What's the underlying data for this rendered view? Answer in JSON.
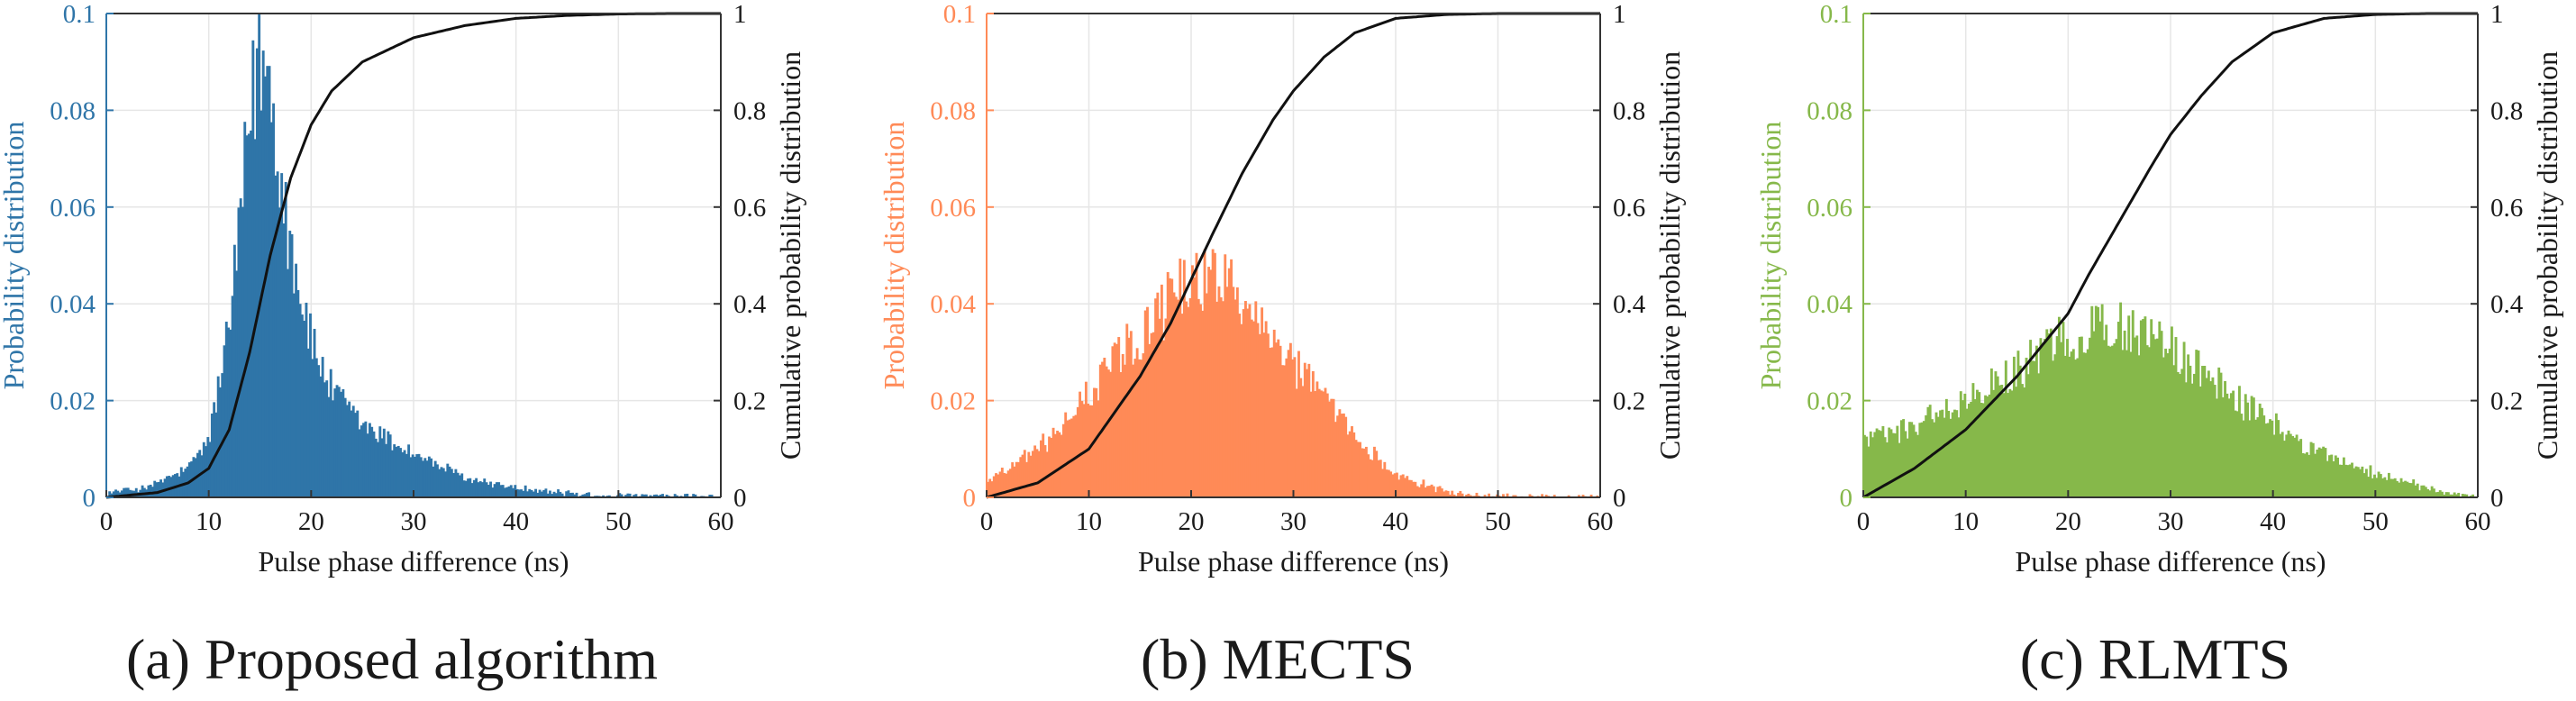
{
  "colors": {
    "proposed": "#2f75a8",
    "mects": "#ff8a57",
    "rlmts": "#86b84a",
    "cdf": "#111111",
    "grid": "#e6e6e6",
    "axis": "#333333"
  },
  "chart_data": [
    {
      "type": "bar",
      "panel": "a",
      "caption": "(a) Proposed algorithm",
      "title": "",
      "xlabel": "Pulse phase difference (ns)",
      "ylabel": "Probability distribution",
      "ylabel_right": "Cumulative probability distribution",
      "xlim": [
        0,
        60
      ],
      "ylim": [
        0,
        0.1
      ],
      "ylim_right": [
        0,
        1
      ],
      "xticks": [
        "0",
        "10",
        "20",
        "30",
        "40",
        "50",
        "60"
      ],
      "yticks": [
        "0",
        "0.02",
        "0.04",
        "0.06",
        "0.08",
        "0.1"
      ],
      "yticks_right": [
        "0",
        "0.2",
        "0.4",
        "0.6",
        "0.8",
        "1"
      ],
      "grid": true,
      "bin_width": 0.2,
      "distribution": "right-skewed peak near 15 ns",
      "profile": {
        "x": [
          0,
          4,
          8,
          10,
          12,
          13,
          14,
          15,
          16,
          17,
          18,
          20,
          22,
          25,
          30,
          35,
          40,
          45,
          50,
          60
        ],
        "y": [
          0.001,
          0.002,
          0.006,
          0.012,
          0.035,
          0.055,
          0.078,
          0.092,
          0.085,
          0.068,
          0.052,
          0.032,
          0.022,
          0.015,
          0.009,
          0.004,
          0.002,
          0.0008,
          0.0003,
          0.0001
        ]
      },
      "cdf": {
        "x": [
          0,
          5,
          8,
          10,
          12,
          14,
          15,
          16,
          18,
          20,
          22,
          25,
          30,
          35,
          40,
          45,
          50,
          55,
          60
        ],
        "y": [
          0,
          0.01,
          0.03,
          0.06,
          0.14,
          0.3,
          0.4,
          0.5,
          0.66,
          0.77,
          0.84,
          0.9,
          0.95,
          0.975,
          0.99,
          0.996,
          0.999,
          1.0,
          1.0
        ]
      }
    },
    {
      "type": "bar",
      "panel": "b",
      "caption": "(b) MECTS",
      "title": "",
      "xlabel": "Pulse phase difference (ns)",
      "ylabel": "Probability distribution",
      "ylabel_right": "Cumulative probability distribution",
      "xlim": [
        0,
        60
      ],
      "ylim": [
        0,
        0.1
      ],
      "ylim_right": [
        0,
        1
      ],
      "xticks": [
        "0",
        "10",
        "20",
        "30",
        "40",
        "50",
        "60"
      ],
      "yticks": [
        "0",
        "0.02",
        "0.04",
        "0.06",
        "0.08",
        "0.1"
      ],
      "yticks_right": [
        "0",
        "0.2",
        "0.4",
        "0.6",
        "0.8",
        "1"
      ],
      "grid": true,
      "bin_width": 0.2,
      "distribution": "bell shaped centered near 22 ns",
      "profile": {
        "x": [
          0,
          2,
          5,
          8,
          10,
          12,
          15,
          18,
          20,
          22,
          24,
          26,
          28,
          30,
          33,
          36,
          40,
          45,
          50,
          60
        ],
        "y": [
          0.003,
          0.006,
          0.01,
          0.016,
          0.021,
          0.027,
          0.034,
          0.041,
          0.045,
          0.046,
          0.044,
          0.04,
          0.034,
          0.028,
          0.02,
          0.012,
          0.005,
          0.001,
          0.0002,
          0.0
        ]
      },
      "cdf": {
        "x": [
          0,
          5,
          10,
          15,
          18,
          20,
          22,
          25,
          28,
          30,
          33,
          36,
          40,
          45,
          50,
          55,
          60
        ],
        "y": [
          0,
          0.03,
          0.1,
          0.25,
          0.36,
          0.45,
          0.54,
          0.67,
          0.78,
          0.84,
          0.91,
          0.96,
          0.99,
          0.998,
          1.0,
          1.0,
          1.0
        ]
      }
    },
    {
      "type": "bar",
      "panel": "c",
      "caption": "(c) RLMTS",
      "title": "",
      "xlabel": "Pulse phase difference (ns)",
      "ylabel": "Probability distribution",
      "ylabel_right": "Cumulative probability distribution",
      "xlim": [
        0,
        60
      ],
      "ylim": [
        0,
        0.1
      ],
      "ylim_right": [
        0,
        1
      ],
      "xticks": [
        "0",
        "10",
        "20",
        "30",
        "40",
        "50",
        "60"
      ],
      "yticks": [
        "0",
        "0.02",
        "0.04",
        "0.06",
        "0.08",
        "0.1"
      ],
      "yticks_right": [
        "0",
        "0.2",
        "0.4",
        "0.6",
        "0.8",
        "1"
      ],
      "grid": true,
      "bin_width": 0.2,
      "distribution": "broad hump centered near 25 ns",
      "profile": {
        "x": [
          0,
          2,
          5,
          10,
          15,
          18,
          20,
          22,
          24,
          26,
          28,
          30,
          33,
          36,
          40,
          43,
          46,
          50,
          55,
          58,
          60
        ],
        "y": [
          0.012,
          0.013,
          0.015,
          0.02,
          0.026,
          0.03,
          0.033,
          0.035,
          0.036,
          0.035,
          0.033,
          0.03,
          0.026,
          0.021,
          0.015,
          0.011,
          0.008,
          0.005,
          0.002,
          0.0005,
          0.0
        ]
      },
      "cdf": {
        "x": [
          0,
          5,
          10,
          15,
          20,
          22,
          25,
          28,
          30,
          33,
          36,
          40,
          45,
          50,
          55,
          60
        ],
        "y": [
          0,
          0.06,
          0.14,
          0.25,
          0.38,
          0.46,
          0.57,
          0.68,
          0.75,
          0.83,
          0.9,
          0.96,
          0.99,
          0.998,
          1.0,
          1.0
        ]
      }
    }
  ]
}
